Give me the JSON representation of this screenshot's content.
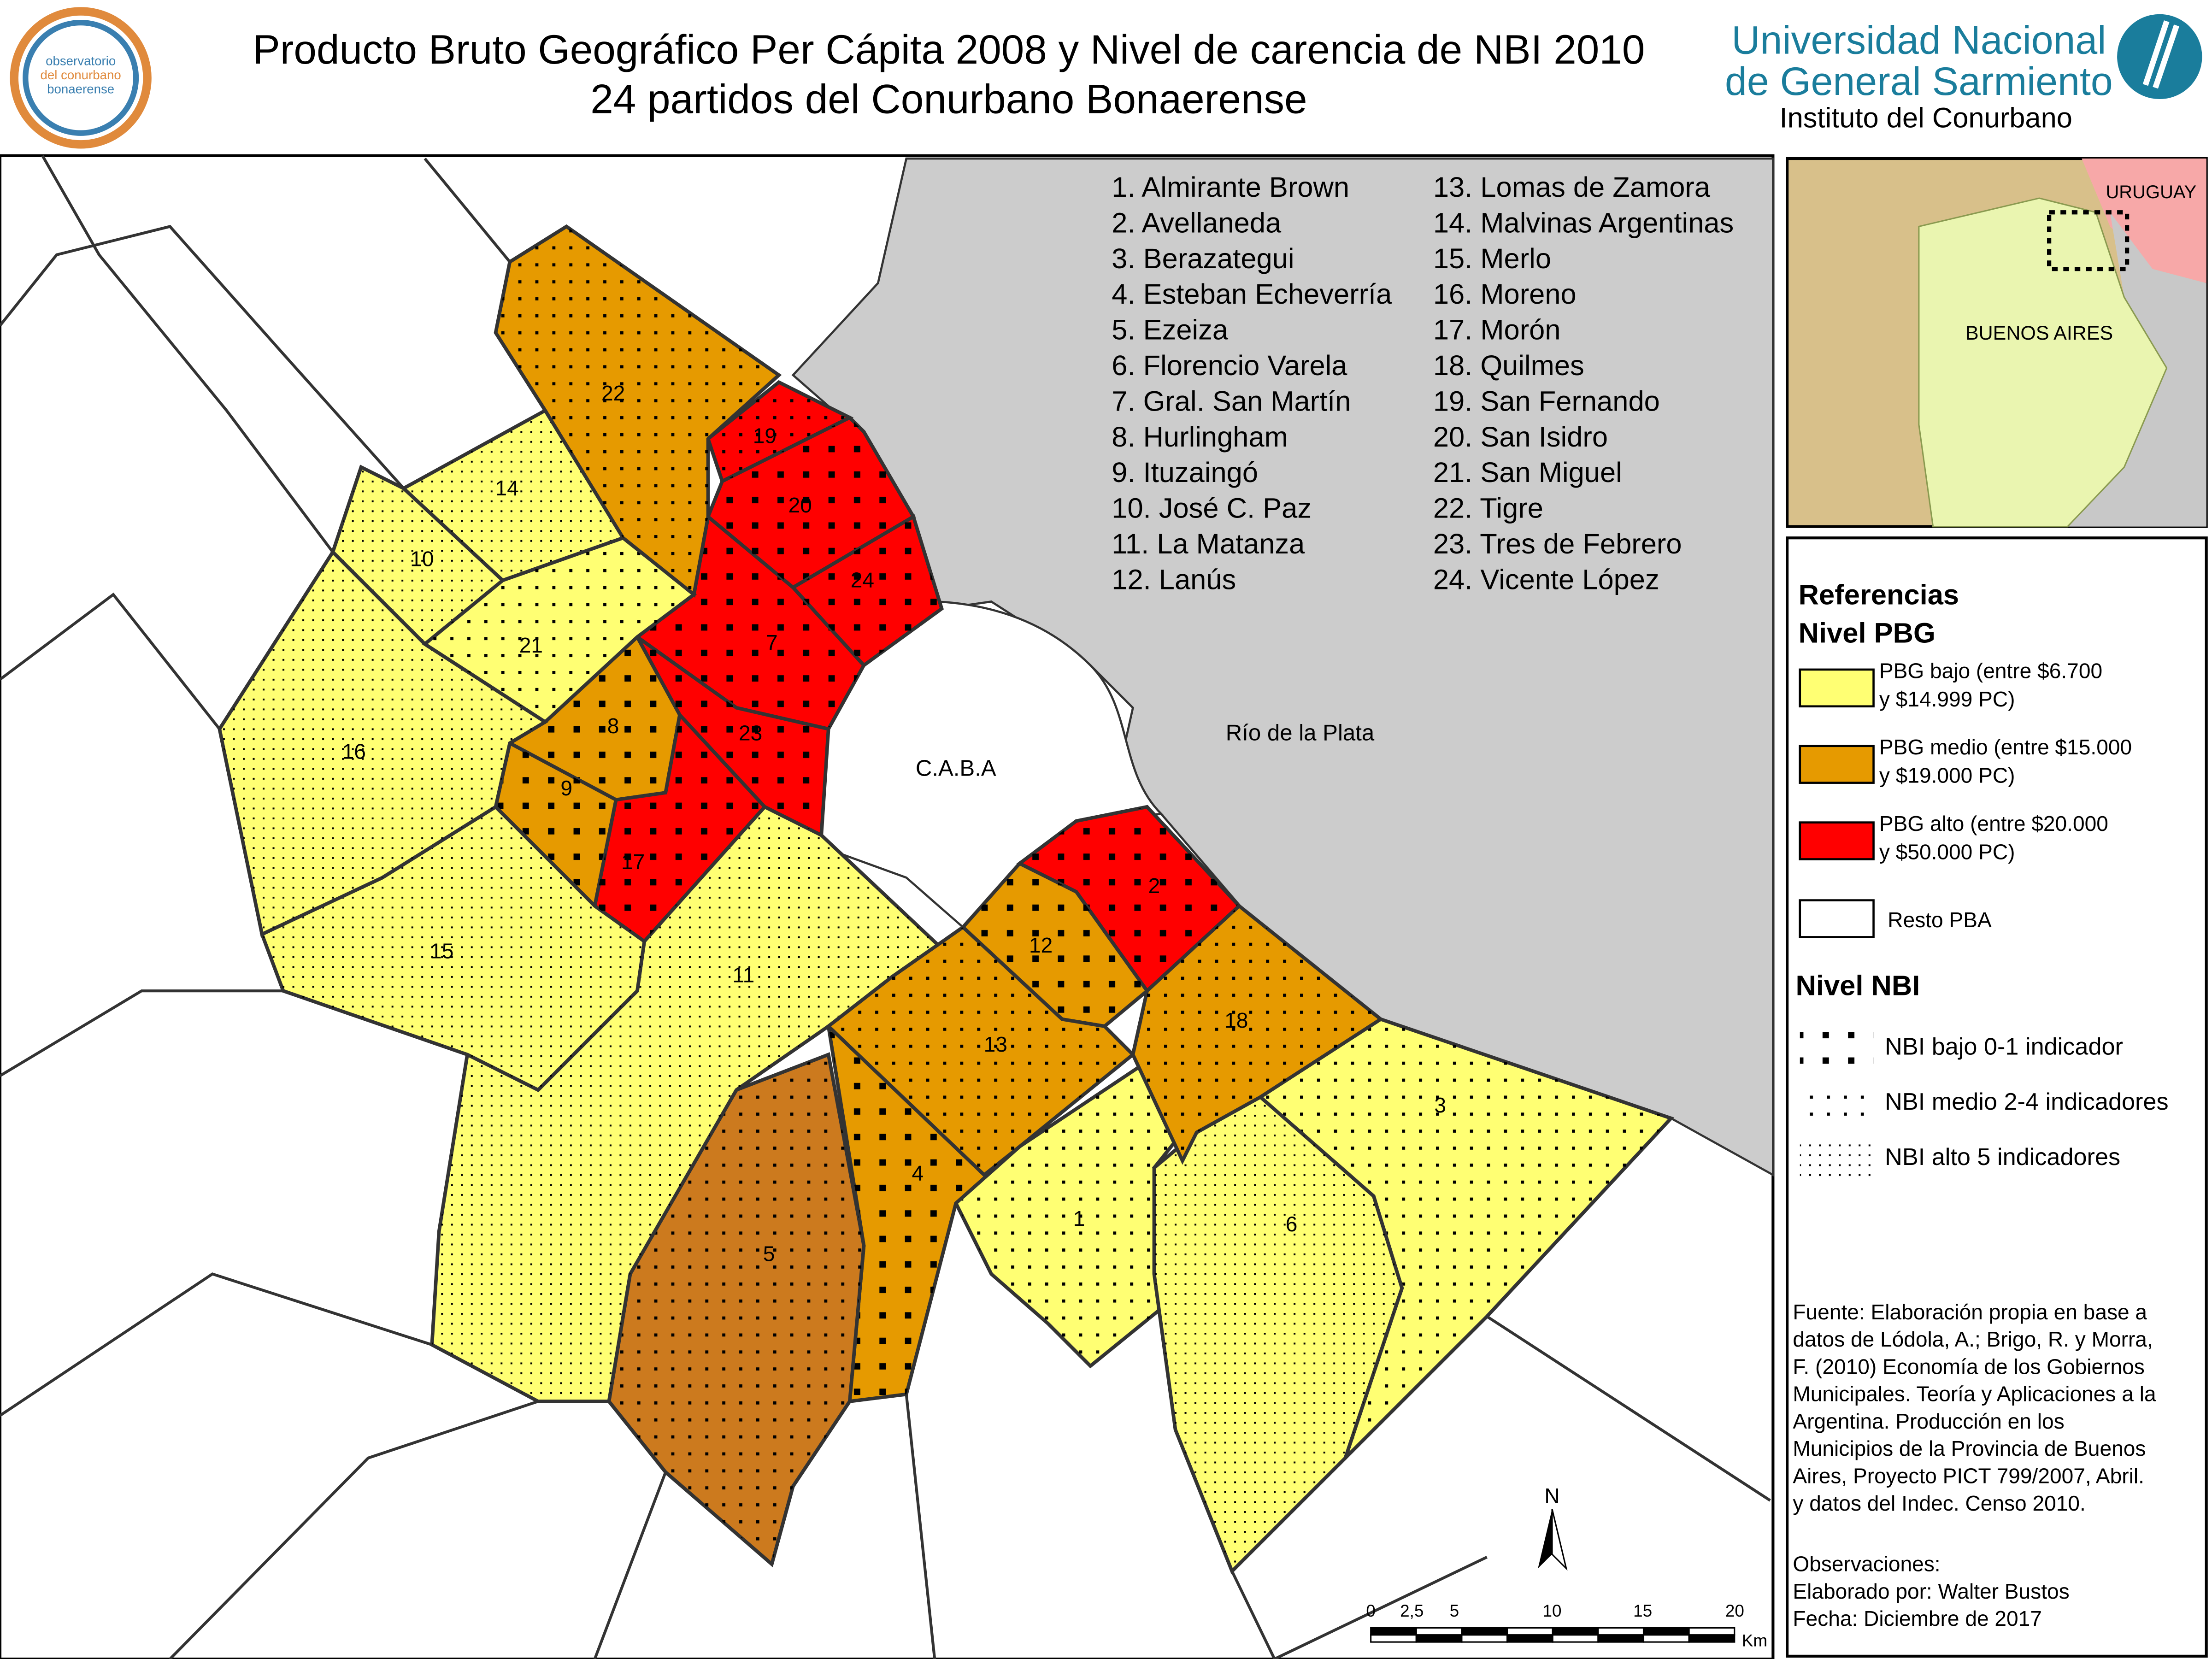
{
  "header": {
    "title_line1": "Producto Bruto Geográfico Per Cápita 2008 y Nivel de carencia de NBI 2010",
    "title_line2": "24 partidos del Conurbano Bonaerense",
    "logo_text": [
      "observatorio",
      "del conurbano",
      "bonaerense"
    ],
    "university": [
      "Universidad Nacional",
      "de General Sarmiento"
    ],
    "institute": "Instituto del Conurbano"
  },
  "partidos_list": [
    "1. Almirante Brown",
    "2. Avellaneda",
    "3. Berazategui",
    "4. Esteban Echeverría",
    "5. Ezeiza",
    "6. Florencio Varela",
    "7. Gral. San Martín",
    "8. Hurlingham",
    "9. Ituzaingó",
    "10. José C. Paz",
    "11. La Matanza",
    "12. Lanús",
    "13. Lomas de Zamora",
    "14. Malvinas Argentinas",
    "15. Merlo",
    "16. Moreno",
    "17. Morón",
    "18. Quilmes",
    "19. San Fernando",
    "20. San Isidro",
    "21. San Miguel",
    "22. Tigre",
    "23. Tres de Febrero",
    "24. Vicente López"
  ],
  "map": {
    "regions": [
      {
        "label": "1",
        "color": "#ffff73",
        "nbi": "medio"
      },
      {
        "label": "2",
        "color": "#ff0000",
        "nbi": "bajo"
      },
      {
        "label": "3",
        "color": "#ffff73",
        "nbi": "medio"
      },
      {
        "label": "4",
        "color": "#e69a00",
        "nbi": "bajo"
      },
      {
        "label": "5",
        "color": "#cc7a1e",
        "nbi": "medio"
      },
      {
        "label": "6",
        "color": "#ffff73",
        "nbi": "alto"
      },
      {
        "label": "7",
        "color": "#ff0000",
        "nbi": "bajo"
      },
      {
        "label": "8",
        "color": "#e69a00",
        "nbi": "bajo"
      },
      {
        "label": "9",
        "color": "#e69a00",
        "nbi": "bajo"
      },
      {
        "label": "10",
        "color": "#ffff73",
        "nbi": "alto"
      },
      {
        "label": "11",
        "color": "#ffff73",
        "nbi": "alto"
      },
      {
        "label": "12",
        "color": "#e69a00",
        "nbi": "bajo"
      },
      {
        "label": "13",
        "color": "#e69a00",
        "nbi": "medio"
      },
      {
        "label": "14",
        "color": "#ffff73",
        "nbi": "alto"
      },
      {
        "label": "15",
        "color": "#ffff73",
        "nbi": "alto"
      },
      {
        "label": "16",
        "color": "#ffff73",
        "nbi": "alto"
      },
      {
        "label": "17",
        "color": "#ff0000",
        "nbi": "bajo"
      },
      {
        "label": "18",
        "color": "#e69a00",
        "nbi": "medio"
      },
      {
        "label": "19",
        "color": "#ff0000",
        "nbi": "medio"
      },
      {
        "label": "20",
        "color": "#ff0000",
        "nbi": "bajo"
      },
      {
        "label": "21",
        "color": "#ffff73",
        "nbi": "medio"
      },
      {
        "label": "22",
        "color": "#e69a00",
        "nbi": "medio"
      },
      {
        "label": "23",
        "color": "#ff0000",
        "nbi": "bajo"
      },
      {
        "label": "24",
        "color": "#ff0000",
        "nbi": "bajo"
      }
    ],
    "caba": "C.A.B.A",
    "river": "Río de la Plata"
  },
  "inset": {
    "uruguay": "URUGUAY",
    "buenos_aires": "BUENOS AIRES"
  },
  "legend": {
    "title": [
      "Referencias",
      "Nivel PBG"
    ],
    "pbg": [
      {
        "label": [
          "PBG bajo (entre $6.700",
          "y $14.999 PC)"
        ],
        "color": "#ffff73"
      },
      {
        "label": [
          "PBG medio (entre $15.000",
          "y $19.000 PC)"
        ],
        "color": "#e69a00"
      },
      {
        "label": [
          "PBG alto (entre $20.000",
          "y $50.000 PC)"
        ],
        "color": "#ff0000"
      }
    ],
    "resto": {
      "label": "Resto PBA",
      "color": "#ffffff"
    },
    "nbi_title": "Nivel NBI",
    "nbi": [
      {
        "label": "NBI bajo 0-1 indicador",
        "pattern": "bajo"
      },
      {
        "label": "NBI medio 2-4 indicadores",
        "pattern": "medio"
      },
      {
        "label": "NBI alto 5 indicadores",
        "pattern": "alto"
      }
    ]
  },
  "source": [
    "Fuente: Elaboración propia en base a",
    "datos de Lódola, A.; Brigo, R. y Morra,",
    "F. (2010) Economía de los Gobiernos",
    "Municipales. Teoría y Aplicaciones a la",
    " Argentina. Producción en los",
    "Municipios de la Provincia de Buenos",
    "Aires, Proyecto PICT 799/2007, Abril.",
    "y datos del Indec. Censo 2010."
  ],
  "observations": [
    "Observaciones:",
    "Elaborado por: Walter Bustos",
    "Fecha: Diciembre de 2017"
  ],
  "scale": {
    "labels": [
      "0",
      "2,5",
      "5",
      "10",
      "15",
      "20"
    ],
    "unit": "Km"
  },
  "north": "N"
}
